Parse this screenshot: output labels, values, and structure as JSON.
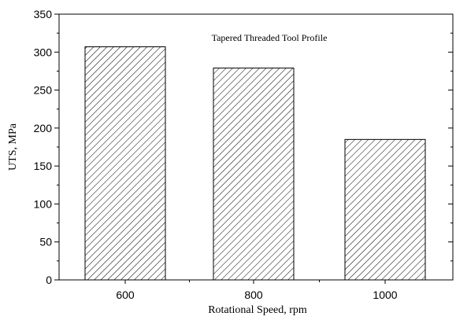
{
  "chart_data": {
    "type": "bar",
    "categories": [
      "600",
      "800",
      "1000"
    ],
    "values": [
      307,
      279,
      185
    ],
    "annotation": "Tapered Threaded Tool Profile",
    "xlabel": "Rotational Speed, rpm",
    "ylabel": "UTS, MPa",
    "ylim": [
      0,
      350
    ],
    "yticks": [
      "0",
      "50",
      "100",
      "150",
      "200",
      "250",
      "300",
      "350"
    ],
    "grid": false,
    "bar_fill": "diagonal-hatch",
    "colors": {
      "axis": "#000000",
      "bar_stroke": "#000000",
      "hatch": "#000000",
      "background": "#ffffff"
    }
  }
}
